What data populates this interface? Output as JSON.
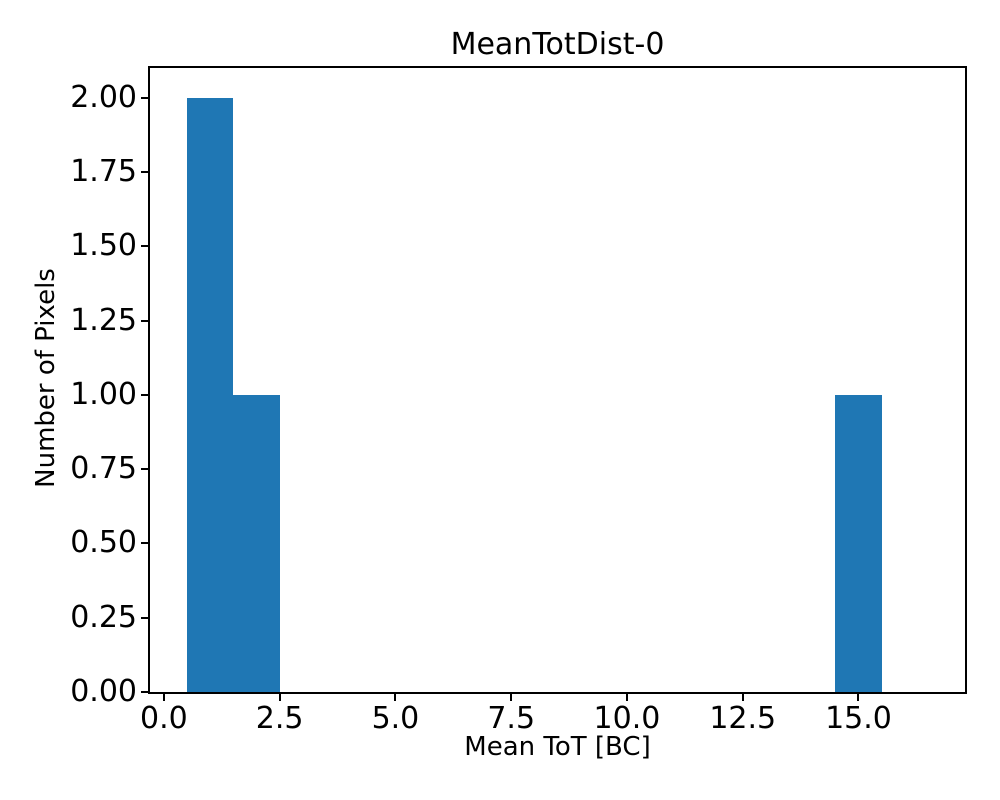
{
  "chart_data": {
    "type": "bar",
    "title": "MeanTotDist-0",
    "xlabel": "Mean ToT [BC]",
    "ylabel": "Number of Pixels",
    "bar_color": "#1f77b4",
    "bins": [
      {
        "x0": 0.5,
        "x1": 1.5,
        "count": 2
      },
      {
        "x0": 1.5,
        "x1": 2.5,
        "count": 1
      },
      {
        "x0": 14.5,
        "x1": 15.5,
        "count": 1
      }
    ],
    "xlim": [
      -0.3,
      17.3
    ],
    "ylim": [
      0,
      2.1
    ],
    "x_ticks": {
      "values": [
        0.0,
        2.5,
        5.0,
        7.5,
        10.0,
        12.5,
        15.0
      ],
      "labels": [
        "0.0",
        "2.5",
        "5.0",
        "7.5",
        "10.0",
        "12.5",
        "15.0"
      ]
    },
    "y_ticks": {
      "values": [
        0.0,
        0.25,
        0.5,
        0.75,
        1.0,
        1.25,
        1.5,
        1.75,
        2.0
      ],
      "labels": [
        "0.00",
        "0.25",
        "0.50",
        "0.75",
        "1.00",
        "1.25",
        "1.50",
        "1.75",
        "2.00"
      ]
    },
    "grid": false,
    "legend": null,
    "spine_color": "#000000",
    "text_color": "#000000"
  }
}
